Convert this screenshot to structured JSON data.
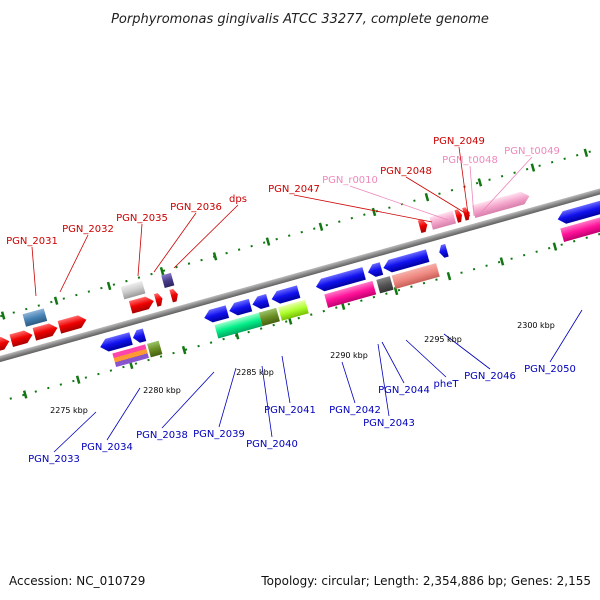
{
  "title": "Porphyromonas gingivalis ATCC 33277, complete genome",
  "footer": {
    "accession": "Accession: NC_010729",
    "summary": "Topology: circular; Length: 2,354,886 bp; Genes: 2,155"
  },
  "colors": {
    "backbone": "#888888",
    "forward_label": "#cc0000",
    "reverse_label": "#0000bb",
    "rna_label": "#ee88bb",
    "tick": "#117711"
  },
  "ticks": [
    "2275 kbp",
    "2280 kbp",
    "2285 kbp",
    "2290 kbp",
    "2295 kbp",
    "2300 kbp"
  ],
  "forward_labels": [
    "PGN_2031",
    "PGN_2032",
    "PGN_2035",
    "PGN_2036",
    "dps",
    "PGN_2047",
    "PGN_2048",
    "PGN_2049"
  ],
  "rna_labels": [
    "PGN_r0010",
    "PGN_t0048",
    "PGN_t0049"
  ],
  "reverse_labels": [
    "PGN_2033",
    "PGN_2034",
    "PGN_2038",
    "PGN_2039",
    "PGN_2040",
    "PGN_2041",
    "PGN_2042",
    "PGN_2043",
    "PGN_2044",
    "pheT",
    "PGN_2046",
    "PGN_2050"
  ]
}
